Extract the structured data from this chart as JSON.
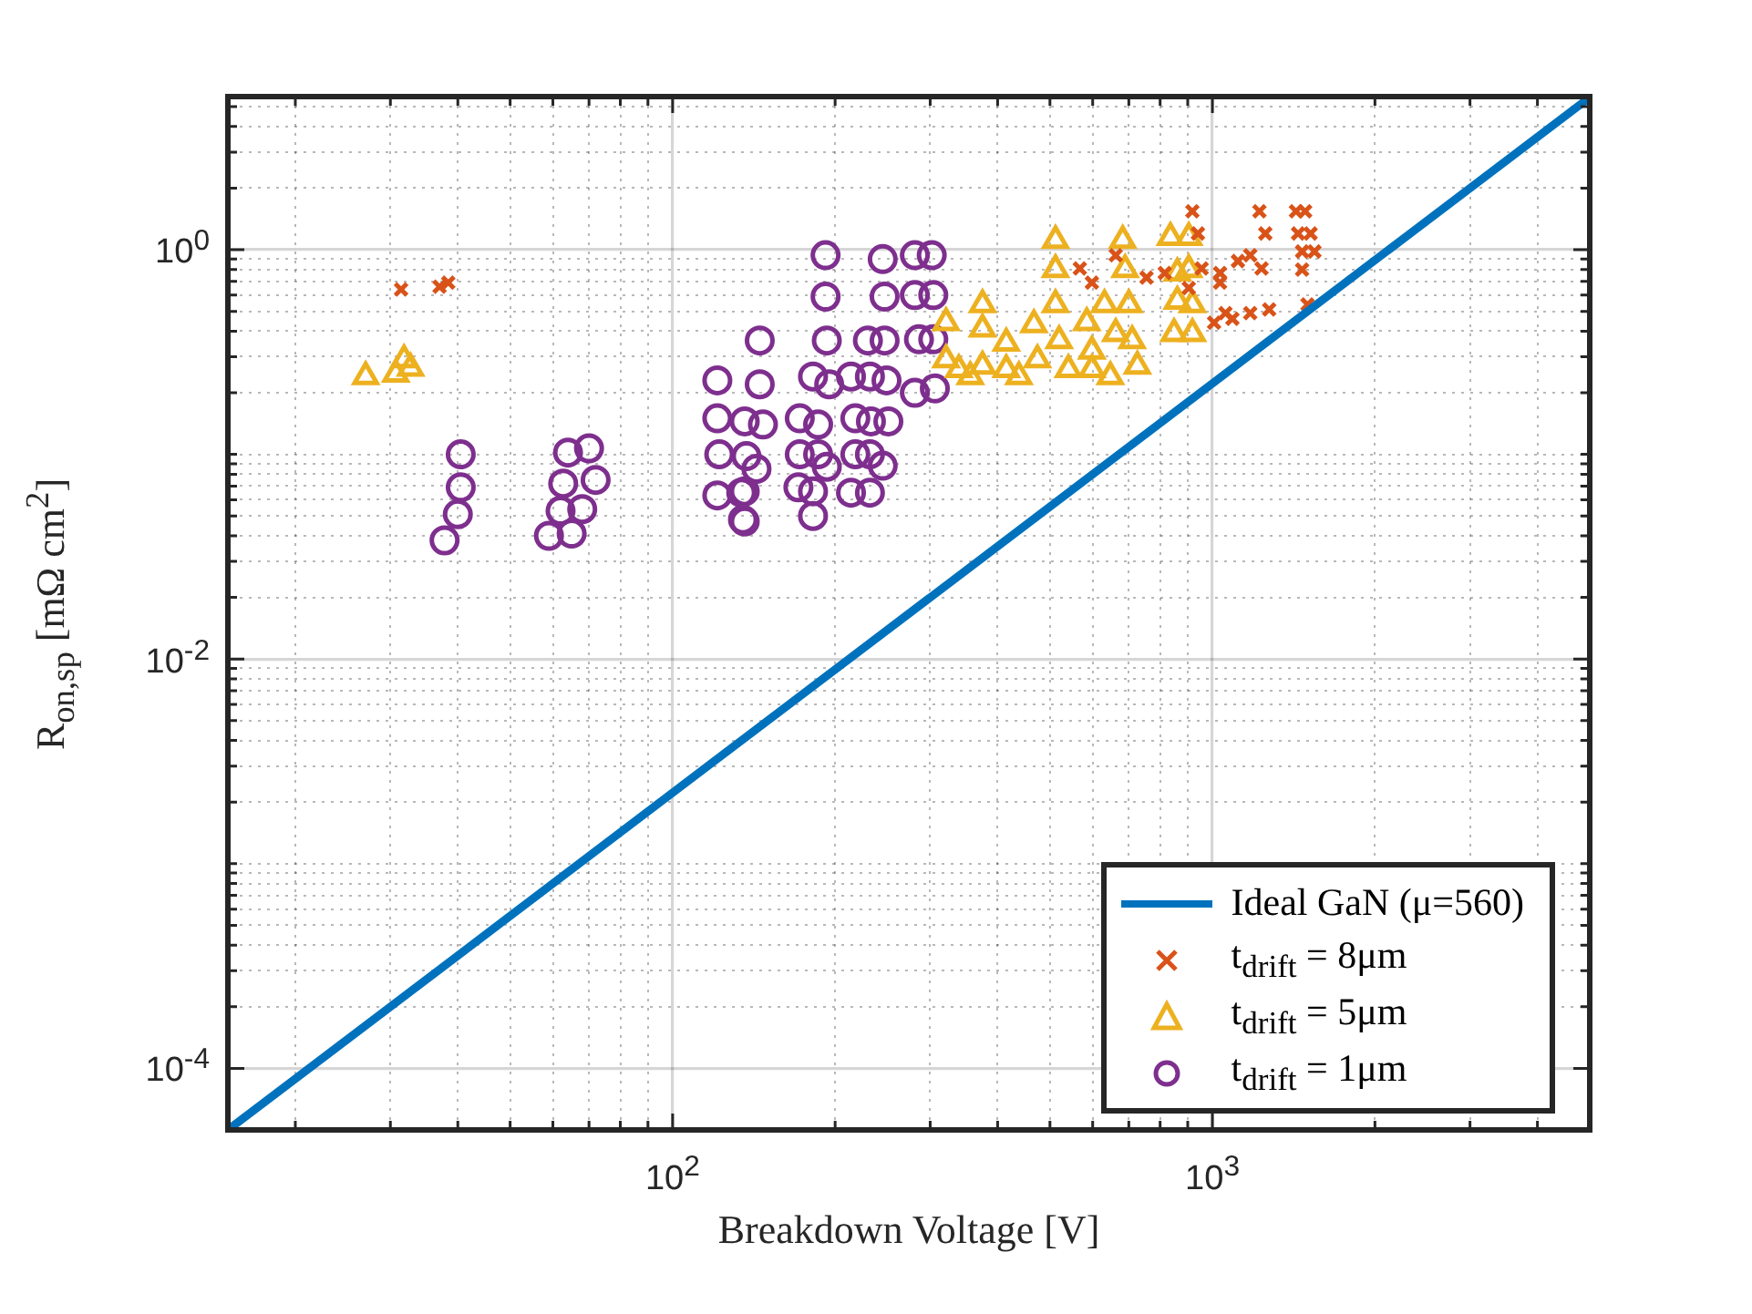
{
  "chart_data": {
    "type": "scatter",
    "xlabel": "Breakdown Voltage [V]",
    "ylabel": "R$_{on,sp}$ [mΩ cm$^{2}$]",
    "log": "xy",
    "grid": true,
    "legend": "bottom right",
    "xlim": [
      15,
      5000
    ],
    "ylim": [
      5e-05,
      5.6
    ],
    "xticks": [
      {
        "value": 20,
        "label": null
      },
      {
        "value": 30,
        "label": null
      },
      {
        "value": 40,
        "label": null
      },
      {
        "value": 50,
        "label": null
      },
      {
        "value": 60,
        "label": null
      },
      {
        "value": 70,
        "label": null
      },
      {
        "value": 80,
        "label": null
      },
      {
        "value": 90,
        "label": null
      },
      {
        "value": 100,
        "label": "10$^{2}$"
      },
      {
        "value": 200,
        "label": null
      },
      {
        "value": 300,
        "label": null
      },
      {
        "value": 400,
        "label": null
      },
      {
        "value": 500,
        "label": null
      },
      {
        "value": 600,
        "label": null
      },
      {
        "value": 700,
        "label": null
      },
      {
        "value": 800,
        "label": null
      },
      {
        "value": 900,
        "label": null
      },
      {
        "value": 1000,
        "label": "10$^{3}$"
      },
      {
        "value": 2000,
        "label": null
      },
      {
        "value": 3000,
        "label": null
      },
      {
        "value": 4000,
        "label": null
      }
    ],
    "yticks": [
      {
        "value": 0.0001,
        "label": "10$^{-4}$"
      },
      {
        "value": 0.0002,
        "label": null
      },
      {
        "value": 0.0003,
        "label": null
      },
      {
        "value": 0.0004,
        "label": null
      },
      {
        "value": 0.0005,
        "label": null
      },
      {
        "value": 0.0006,
        "label": null
      },
      {
        "value": 0.0007,
        "label": null
      },
      {
        "value": 0.0008,
        "label": null
      },
      {
        "value": 0.0009,
        "label": null
      },
      {
        "value": 0.001,
        "label": null
      },
      {
        "value": 0.002,
        "label": null
      },
      {
        "value": 0.003,
        "label": null
      },
      {
        "value": 0.004,
        "label": null
      },
      {
        "value": 0.005,
        "label": null
      },
      {
        "value": 0.006,
        "label": null
      },
      {
        "value": 0.007,
        "label": null
      },
      {
        "value": 0.008,
        "label": null
      },
      {
        "value": 0.009,
        "label": null
      },
      {
        "value": 0.01,
        "label": "10$^{-2}$"
      },
      {
        "value": 0.02,
        "label": null
      },
      {
        "value": 0.03,
        "label": null
      },
      {
        "value": 0.04,
        "label": null
      },
      {
        "value": 0.05,
        "label": null
      },
      {
        "value": 0.06,
        "label": null
      },
      {
        "value": 0.07,
        "label": null
      },
      {
        "value": 0.08,
        "label": null
      },
      {
        "value": 0.09,
        "label": null
      },
      {
        "value": 0.1,
        "label": null
      },
      {
        "value": 0.2,
        "label": null
      },
      {
        "value": 0.3,
        "label": null
      },
      {
        "value": 0.4,
        "label": null
      },
      {
        "value": 0.5,
        "label": null
      },
      {
        "value": 0.6,
        "label": null
      },
      {
        "value": 0.7,
        "label": null
      },
      {
        "value": 0.8,
        "label": null
      },
      {
        "value": 0.9,
        "label": null
      },
      {
        "value": 1,
        "label": "10$^{0}$"
      },
      {
        "value": 2,
        "label": null
      },
      {
        "value": 3,
        "label": null
      },
      {
        "value": 4,
        "label": null
      },
      {
        "value": 5,
        "label": null
      }
    ],
    "series": [
      {
        "name": "Ideal GaN (μ=560)",
        "type": "line",
        "marker": "none",
        "line_style": "solid",
        "color": "#0072bd",
        "x": [
          15,
          5000
        ],
        "values": [
          5e-05,
          5.55
        ]
      },
      {
        "name": "t$_{drift}$ = 8μm",
        "type": "scatter",
        "marker": "cross",
        "color": "#d95319",
        "x": [
          31.4,
          37,
          38.4,
          918,
          1222,
          1428,
          1485,
          940,
          1253,
          1441,
          1520,
          1466,
          1545,
          1466,
          568,
          598,
          662,
          755,
          816,
          955,
          1033,
          1115,
          1175,
          1233,
          1007,
          1089,
          1175,
          1274,
          1033,
          904,
          1500,
          1057
        ],
        "values": [
          0.64,
          0.66,
          0.69,
          1.54,
          1.54,
          1.54,
          1.54,
          1.2,
          1.2,
          1.2,
          1.2,
          0.98,
          0.98,
          0.8,
          0.81,
          0.69,
          0.94,
          0.73,
          0.77,
          0.81,
          0.77,
          0.88,
          0.94,
          0.81,
          0.44,
          0.46,
          0.49,
          0.51,
          0.69,
          0.65,
          0.54,
          0.49
        ]
      },
      {
        "name": "t$_{drift}$ = 5μm",
        "type": "scatter",
        "marker": "triangle",
        "color": "#edb120",
        "x": [
          27,
          30.7,
          31.8,
          32.7,
          321,
          321,
          339,
          375,
          375,
          375,
          415,
          415,
          356,
          467,
          474,
          512,
          512,
          512,
          520,
          541,
          585,
          598,
          631,
          662,
          682,
          689,
          700,
          710,
          726,
          836,
          861,
          861,
          849,
          904,
          904,
          918,
          918,
          598,
          438,
          647
        ],
        "values": [
          0.24,
          0.247,
          0.29,
          0.264,
          0.44,
          0.29,
          0.26,
          0.54,
          0.41,
          0.27,
          0.35,
          0.26,
          0.24,
          0.43,
          0.29,
          1.11,
          0.8,
          0.54,
          0.36,
          0.26,
          0.44,
          0.32,
          0.54,
          0.39,
          1.11,
          0.8,
          0.54,
          0.36,
          0.27,
          1.15,
          0.77,
          0.56,
          0.39,
          1.15,
          0.8,
          0.54,
          0.39,
          0.26,
          0.24,
          0.24
        ]
      },
      {
        "name": "t$_{drift}$ = 1μm",
        "type": "scatter",
        "marker": "circle",
        "color": "#7e2f8e",
        "x": [
          40.5,
          40.5,
          40,
          37.8,
          64,
          70,
          62.7,
          72,
          62,
          68,
          59,
          65,
          121,
          121,
          122,
          121,
          136,
          137,
          136,
          136,
          145,
          145,
          143,
          192,
          192,
          193,
          182,
          195,
          172,
          186,
          172,
          186,
          193,
          171,
          182,
          182,
          147,
          134,
          135,
          245,
          247,
          230,
          247,
          214,
          232,
          249,
          218,
          233,
          251,
          218,
          232,
          245,
          214,
          232,
          281,
          302,
          281,
          304,
          286,
          304,
          281,
          306
        ],
        "values": [
          0.1,
          0.069,
          0.051,
          0.038,
          0.102,
          0.107,
          0.072,
          0.075,
          0.053,
          0.054,
          0.04,
          0.041,
          0.23,
          0.15,
          0.1,
          0.063,
          0.145,
          0.098,
          0.066,
          0.047,
          0.36,
          0.22,
          0.085,
          0.94,
          0.59,
          0.36,
          0.24,
          0.22,
          0.15,
          0.14,
          0.1,
          0.1,
          0.087,
          0.069,
          0.066,
          0.05,
          0.14,
          0.065,
          0.048,
          0.9,
          0.59,
          0.36,
          0.36,
          0.24,
          0.24,
          0.23,
          0.15,
          0.145,
          0.145,
          0.1,
          0.1,
          0.088,
          0.065,
          0.065,
          0.94,
          0.94,
          0.6,
          0.6,
          0.365,
          0.365,
          0.2,
          0.21
        ]
      }
    ]
  }
}
